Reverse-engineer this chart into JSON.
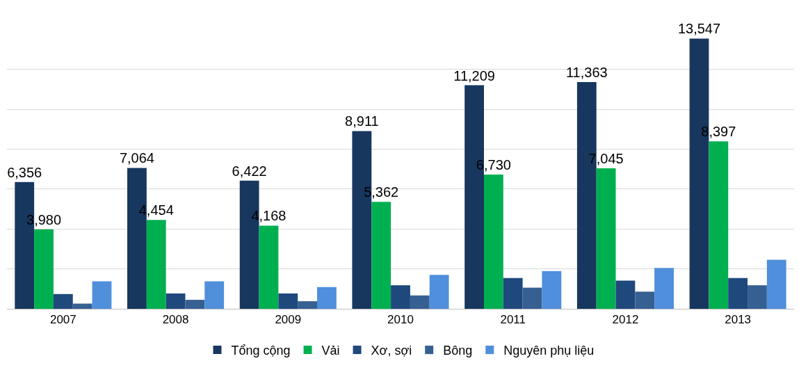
{
  "chart_data": {
    "type": "bar",
    "categories": [
      "2007",
      "2008",
      "2009",
      "2010",
      "2011",
      "2012",
      "2013"
    ],
    "series": [
      {
        "name": "Tổng cộng",
        "color": "#17375e",
        "values": [
          6356,
          7064,
          6422,
          8911,
          11209,
          11363,
          13547
        ],
        "value_labels": [
          "6,356",
          "7,064",
          "6,422",
          "8,911",
          "11,209",
          "11,363",
          "13,547"
        ]
      },
      {
        "name": "Vải",
        "color": "#00b050",
        "values": [
          3980,
          4454,
          4168,
          5362,
          6730,
          7045,
          8397
        ],
        "value_labels": [
          "3,980",
          "4,454",
          "4,168",
          "5,362",
          "6,730",
          "7,045",
          "8,397"
        ]
      },
      {
        "name": "Xơ, sợi",
        "color": "#1f497d",
        "values": [
          740,
          770,
          770,
          1180,
          1540,
          1410,
          1540
        ]
      },
      {
        "name": "Bông",
        "color": "#376092",
        "values": [
          260,
          450,
          380,
          670,
          1060,
          860,
          1180
        ]
      },
      {
        "name": "Nguyên phụ liệu",
        "color": "#4f8fdc",
        "values": [
          1380,
          1380,
          1090,
          1700,
          1890,
          2050,
          2460
        ]
      }
    ],
    "yticks": [
      {
        "value": 0,
        "label": null
      },
      {
        "value": 2000,
        "label": null
      },
      {
        "value": 4000,
        "label": null
      },
      {
        "value": 6000,
        "label": null
      },
      {
        "value": 8000,
        "label": null
      },
      {
        "value": 10000,
        "label": null
      },
      {
        "value": 12000,
        "label": null
      }
    ],
    "grid": "y",
    "legend": "bottom",
    "tick_labels": "x"
  }
}
